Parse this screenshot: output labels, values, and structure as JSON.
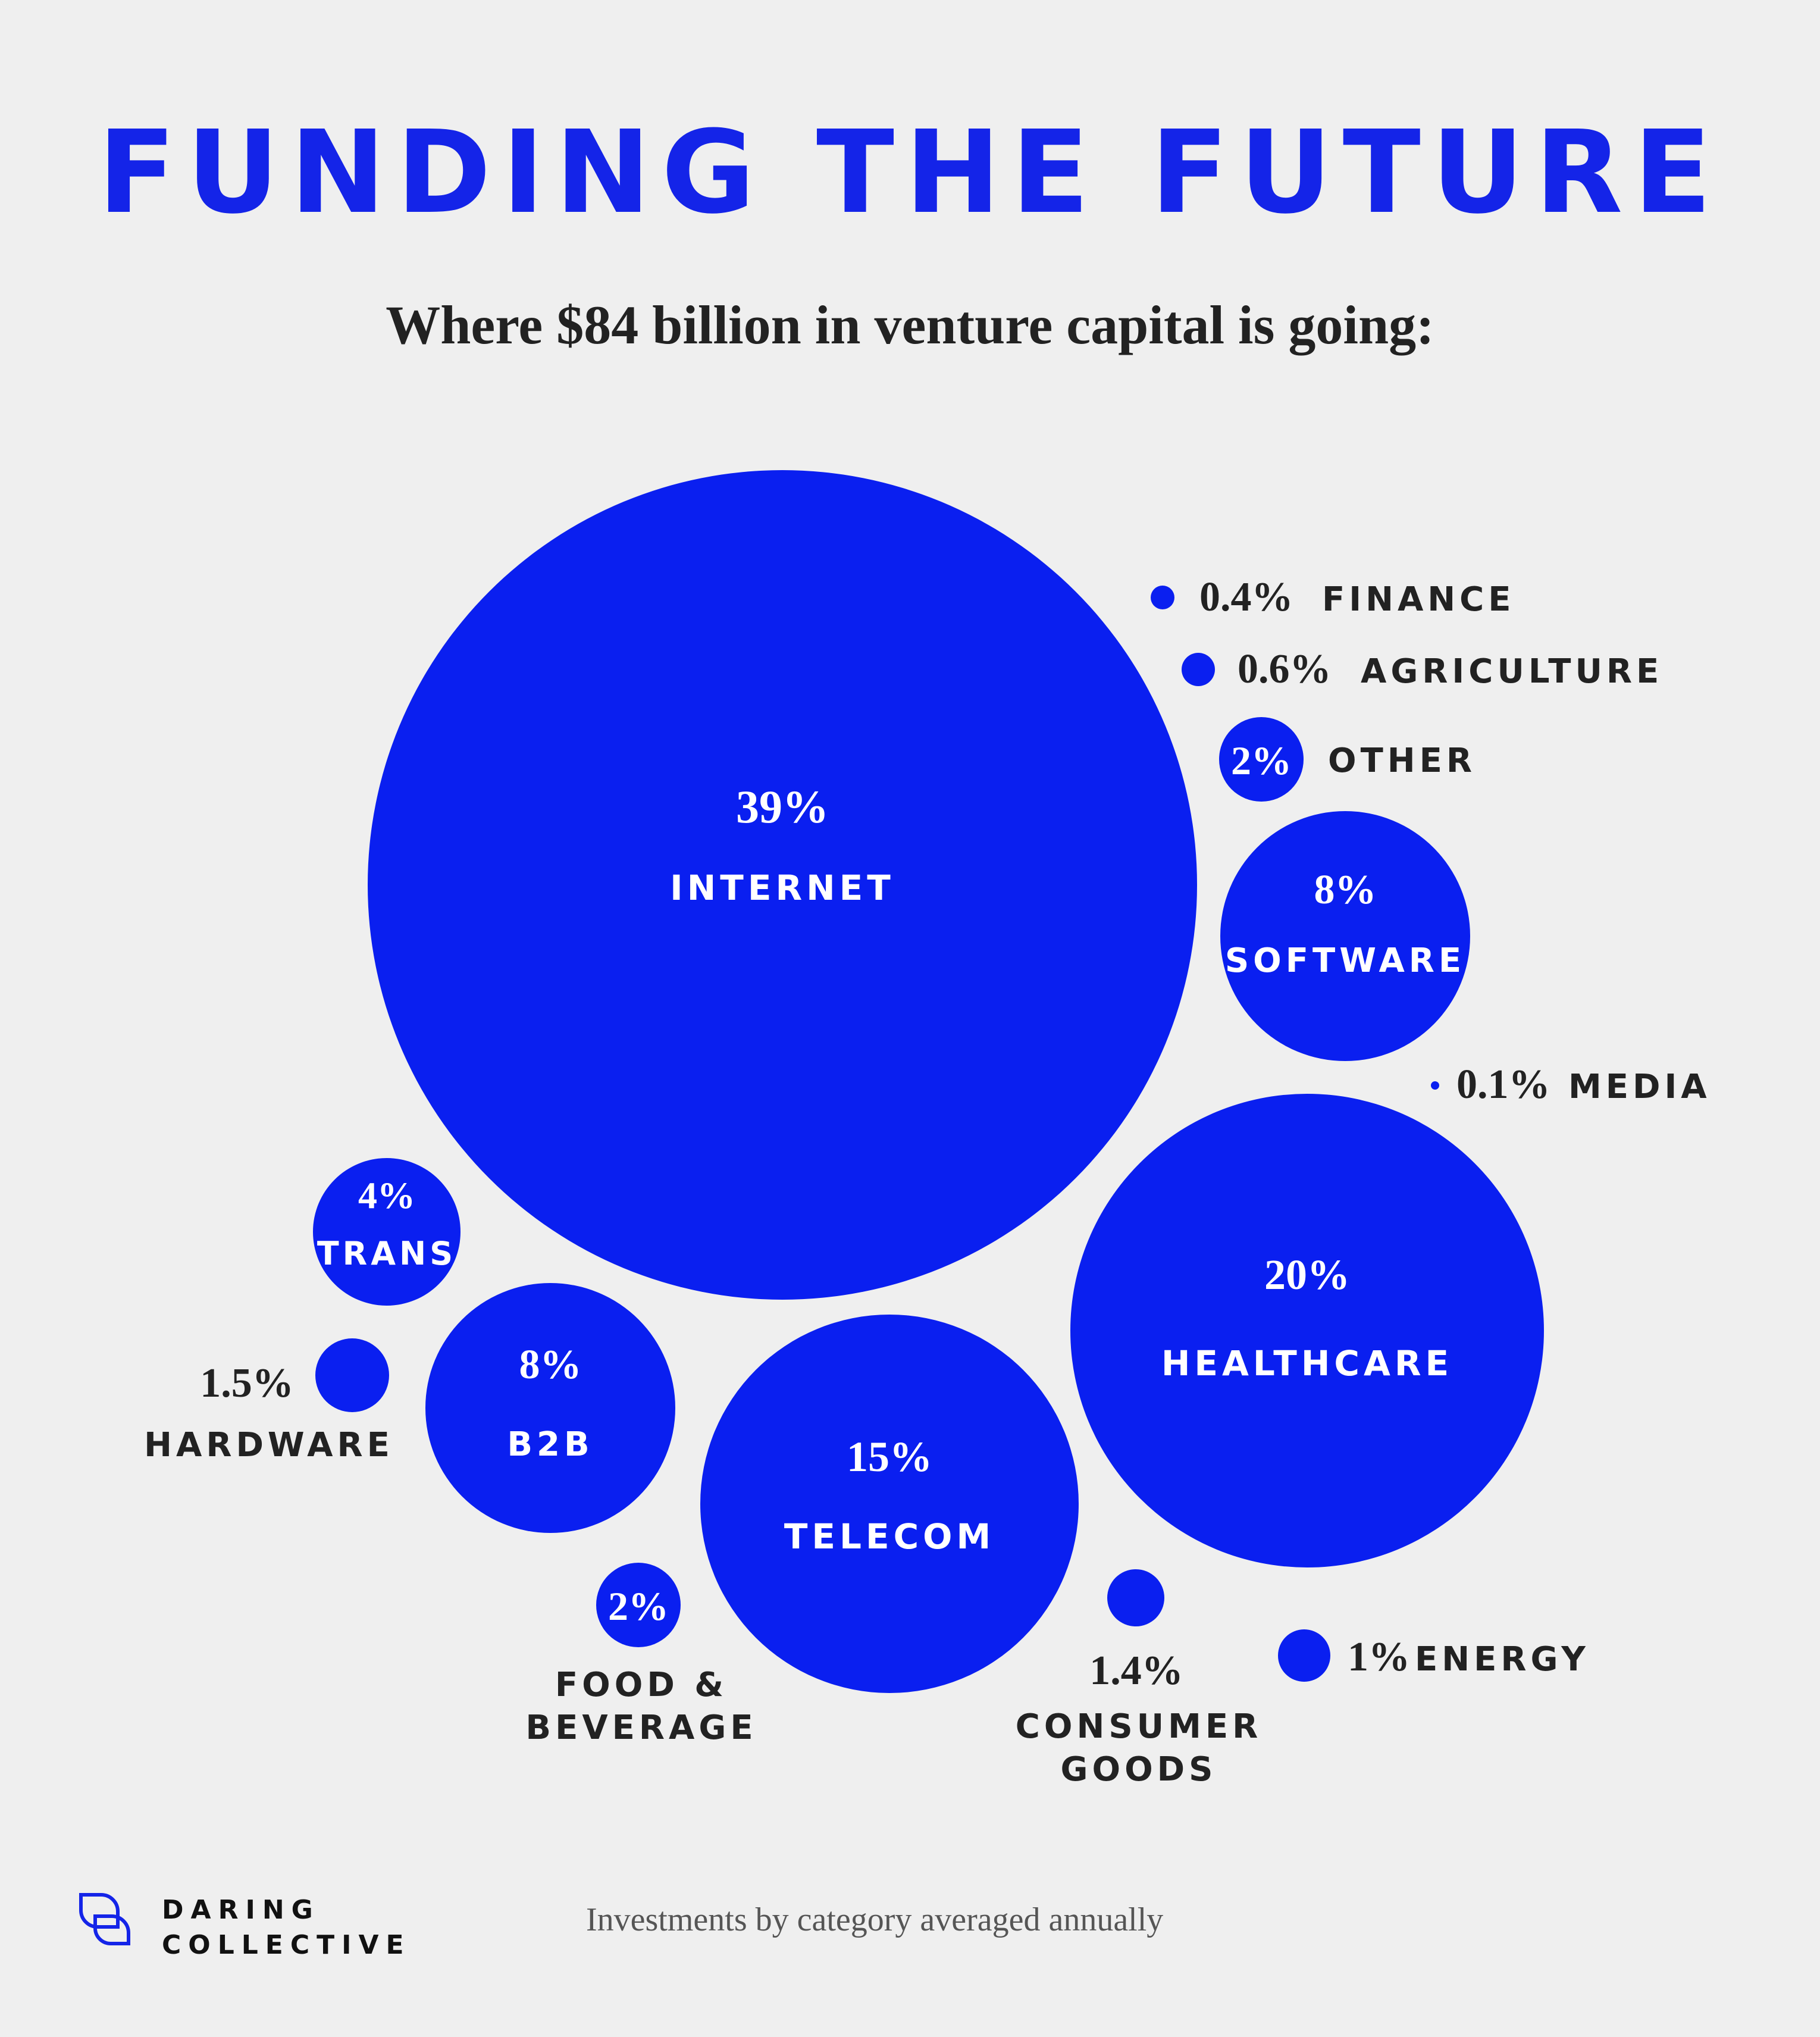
{
  "header": {
    "title": "FUNDING THE FUTURE",
    "subtitle": "Where $84 billion in venture capital is going:"
  },
  "footer": {
    "note": "Investments by category averaged annually",
    "brand_line1": "DARING",
    "brand_line2": "COLLECTIVE"
  },
  "colors": {
    "bubble": "#0a1ff0",
    "title": "#1424e8",
    "inside_label": "#ffffff",
    "outside_label": "#222222",
    "background": "#efefef"
  },
  "chart_data": {
    "type": "bubble",
    "unit": "%",
    "items": [
      {
        "category": "INTERNET",
        "value": 39,
        "label": "39%"
      },
      {
        "category": "HEALTHCARE",
        "value": 20,
        "label": "20%"
      },
      {
        "category": "TELECOM",
        "value": 15,
        "label": "15%"
      },
      {
        "category": "SOFTWARE",
        "value": 8,
        "label": "8%"
      },
      {
        "category": "B2B",
        "value": 8,
        "label": "8%"
      },
      {
        "category": "TRANS",
        "value": 4,
        "label": "4%"
      },
      {
        "category": "OTHER",
        "value": 2,
        "label": "2%"
      },
      {
        "category": "FOOD & BEVERAGE",
        "value": 2,
        "label": "2%"
      },
      {
        "category": "HARDWARE",
        "value": 1.5,
        "label": "1.5%"
      },
      {
        "category": "CONSUMER GOODS",
        "value": 1.4,
        "label": "1.4%"
      },
      {
        "category": "ENERGY",
        "value": 1,
        "label": "1%"
      },
      {
        "category": "AGRICULTURE",
        "value": 0.6,
        "label": "0.6%"
      },
      {
        "category": "FINANCE",
        "value": 0.4,
        "label": "0.4%"
      },
      {
        "category": "MEDIA",
        "value": 0.1,
        "label": "0.1%"
      }
    ]
  }
}
